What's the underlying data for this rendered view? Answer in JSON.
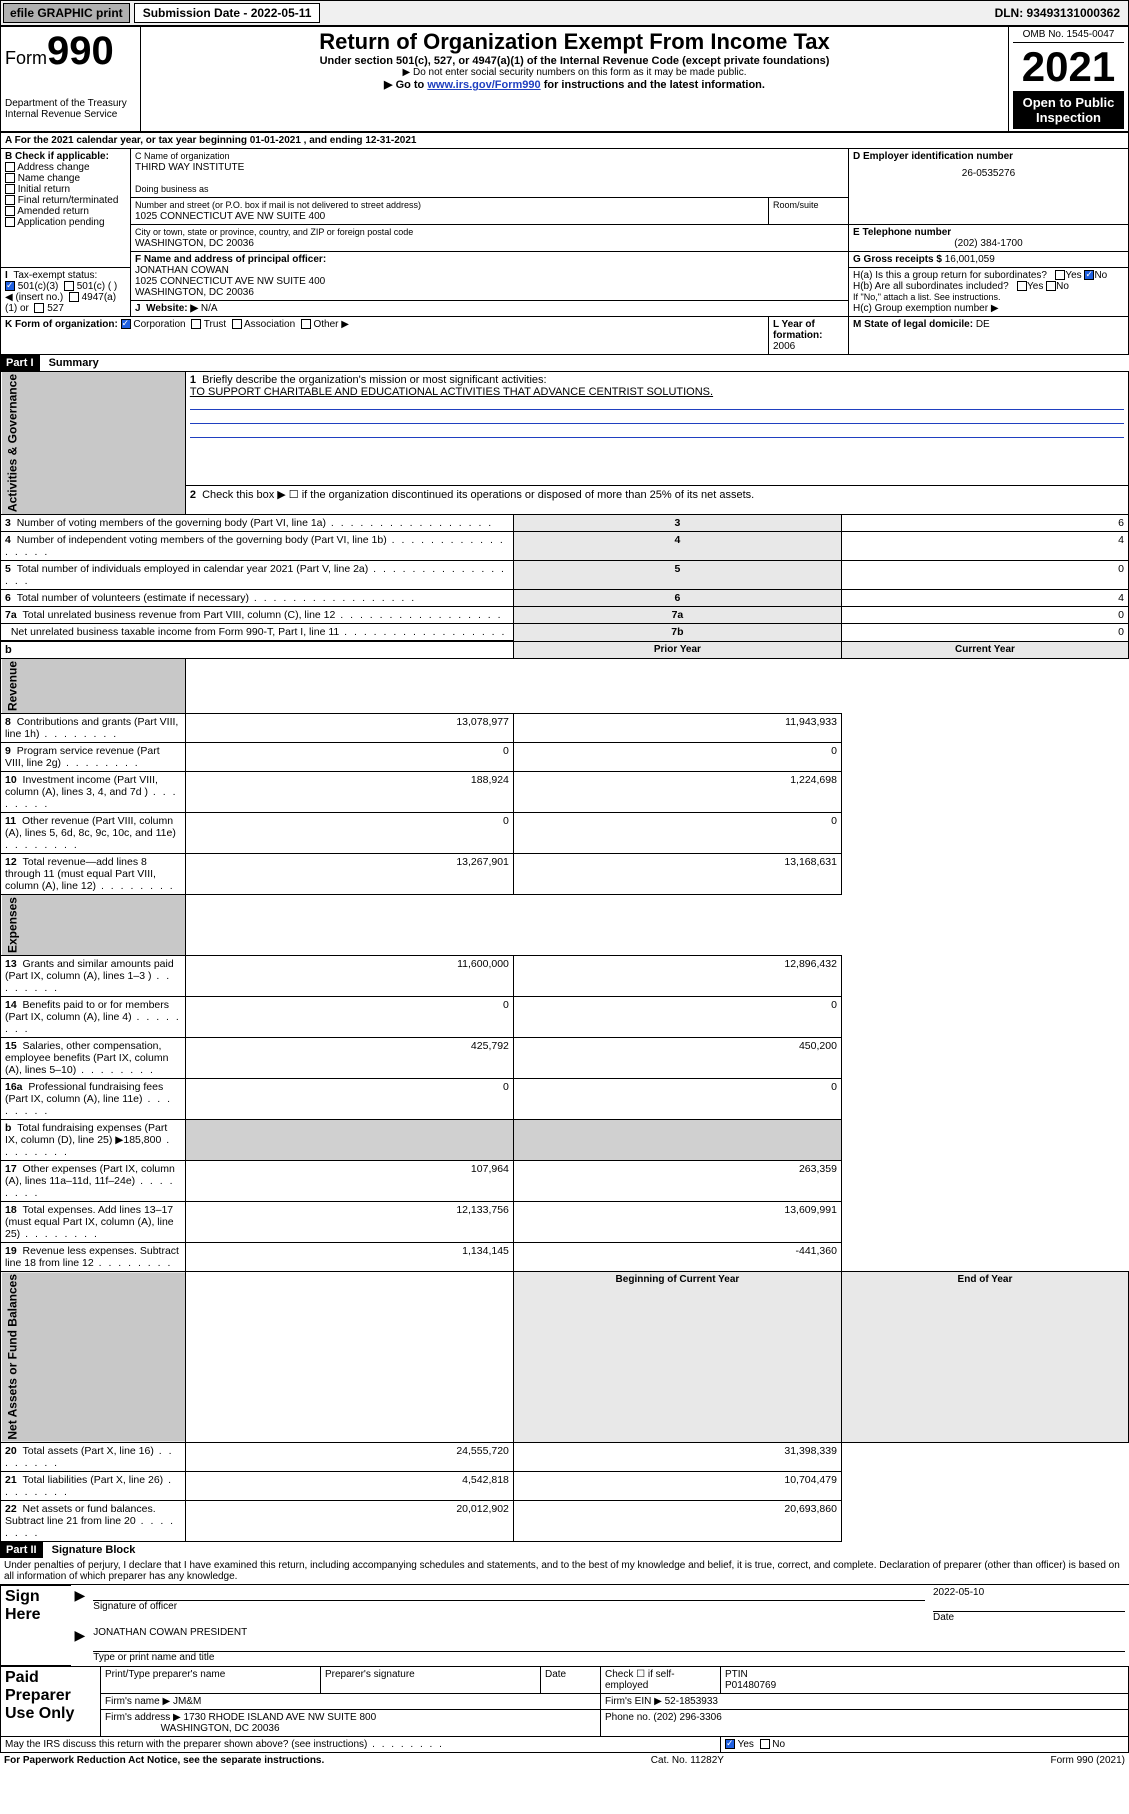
{
  "topbar": {
    "efile": "efile GRAPHIC print",
    "subdate_label": "Submission Date - 2022-05-11",
    "dln": "DLN: 93493131000362"
  },
  "header": {
    "form_prefix": "Form",
    "form_no": "990",
    "title": "Return of Organization Exempt From Income Tax",
    "subtitle": "Under section 501(c), 527, or 4947(a)(1) of the Internal Revenue Code (except private foundations)",
    "note1": "▶ Do not enter social security numbers on this form as it may be made public.",
    "note2_pre": "▶ Go to ",
    "note2_link": "www.irs.gov/Form990",
    "note2_post": " for instructions and the latest information.",
    "omb": "OMB No. 1545-0047",
    "year": "2021",
    "open_public": "Open to Public Inspection",
    "dept": "Department of the Treasury\nInternal Revenue Service"
  },
  "sectionA": {
    "a_line": "A For the 2021 calendar year, or tax year beginning 01-01-2021  , and ending 12-31-2021",
    "b_label": "B Check if applicable:",
    "b_opts": [
      "Address change",
      "Name change",
      "Initial return",
      "Final return/terminated",
      "Amended return",
      "Application pending"
    ],
    "c_label": "C Name of organization",
    "c_name": "THIRD WAY INSTITUTE",
    "dba": "Doing business as",
    "addr_label": "Number and street (or P.O. box if mail is not delivered to street address)",
    "addr": "1025 CONNECTICUT AVE NW SUITE 400",
    "room_label": "Room/suite",
    "city_label": "City or town, state or province, country, and ZIP or foreign postal code",
    "city": "WASHINGTON, DC  20036",
    "d_label": "D Employer identification number",
    "d_ein": "26-0535276",
    "e_label": "E Telephone number",
    "e_phone": "(202) 384-1700",
    "g_label": "G Gross receipts $",
    "g_val": "16,001,059",
    "f_label": "F  Name and address of principal officer:",
    "f_name": "JONATHAN COWAN",
    "f_addr1": "1025 CONNECTICUT AVE NW SUITE 400",
    "f_addr2": "WASHINGTON, DC  20036",
    "ha_label": "H(a)  Is this a group return for subordinates?",
    "hb_label": "H(b)  Are all subordinates included?",
    "hb_note": "If \"No,\" attach a list. See instructions.",
    "hc_label": "H(c)  Group exemption number ▶",
    "i_label": "Tax-exempt status:",
    "i_501c3": "501(c)(3)",
    "i_501c": "501(c) (    ) ◀ (insert no.)",
    "i_4947": "4947(a)(1) or",
    "i_527": "527",
    "j_label": "Website: ▶",
    "j_val": "N/A",
    "k_label": "K Form of organization:",
    "k_opts": [
      "Corporation",
      "Trust",
      "Association",
      "Other ▶"
    ],
    "l_label": "L Year of formation:",
    "l_val": "2006",
    "m_label": "M State of legal domicile:",
    "m_val": "DE",
    "yes": "Yes",
    "no": "No"
  },
  "part1": {
    "hdr": "Part I",
    "title": "Summary",
    "tab_ag": "Activities & Governance",
    "tab_rev": "Revenue",
    "tab_exp": "Expenses",
    "tab_na": "Net Assets or Fund Balances",
    "q1": "Briefly describe the organization's mission or most significant activities:",
    "q1_ans": "TO SUPPORT CHARITABLE AND EDUCATIONAL ACTIVITIES THAT ADVANCE CENTRIST SOLUTIONS.",
    "q2": "Check this box ▶ ☐  if the organization discontinued its operations or disposed of more than 25% of its net assets.",
    "rows_ag": [
      {
        "n": "3",
        "t": "Number of voting members of the governing body (Part VI, line 1a)",
        "ln": "3",
        "v": "6"
      },
      {
        "n": "4",
        "t": "Number of independent voting members of the governing body (Part VI, line 1b)",
        "ln": "4",
        "v": "4"
      },
      {
        "n": "5",
        "t": "Total number of individuals employed in calendar year 2021 (Part V, line 2a)",
        "ln": "5",
        "v": "0"
      },
      {
        "n": "6",
        "t": "Total number of volunteers (estimate if necessary)",
        "ln": "6",
        "v": "4"
      },
      {
        "n": "7a",
        "t": "Total unrelated business revenue from Part VIII, column (C), line 12",
        "ln": "7a",
        "v": "0"
      },
      {
        "n": "",
        "t": "Net unrelated business taxable income from Form 990-T, Part I, line 11",
        "ln": "7b",
        "v": "0"
      }
    ],
    "col_prior": "Prior Year",
    "col_current": "Current Year",
    "rows_rev": [
      {
        "n": "8",
        "t": "Contributions and grants (Part VIII, line 1h)",
        "p": "13,078,977",
        "c": "11,943,933"
      },
      {
        "n": "9",
        "t": "Program service revenue (Part VIII, line 2g)",
        "p": "0",
        "c": "0"
      },
      {
        "n": "10",
        "t": "Investment income (Part VIII, column (A), lines 3, 4, and 7d )",
        "p": "188,924",
        "c": "1,224,698"
      },
      {
        "n": "11",
        "t": "Other revenue (Part VIII, column (A), lines 5, 6d, 8c, 9c, 10c, and 11e)",
        "p": "0",
        "c": "0"
      },
      {
        "n": "12",
        "t": "Total revenue—add lines 8 through 11 (must equal Part VIII, column (A), line 12)",
        "p": "13,267,901",
        "c": "13,168,631"
      }
    ],
    "rows_exp": [
      {
        "n": "13",
        "t": "Grants and similar amounts paid (Part IX, column (A), lines 1–3 )",
        "p": "11,600,000",
        "c": "12,896,432"
      },
      {
        "n": "14",
        "t": "Benefits paid to or for members (Part IX, column (A), line 4)",
        "p": "0",
        "c": "0"
      },
      {
        "n": "15",
        "t": "Salaries, other compensation, employee benefits (Part IX, column (A), lines 5–10)",
        "p": "425,792",
        "c": "450,200"
      },
      {
        "n": "16a",
        "t": "Professional fundraising fees (Part IX, column (A), line 11e)",
        "p": "0",
        "c": "0"
      },
      {
        "n": "b",
        "t": "Total fundraising expenses (Part IX, column (D), line 25) ▶185,800",
        "p": "",
        "c": ""
      },
      {
        "n": "17",
        "t": "Other expenses (Part IX, column (A), lines 11a–11d, 11f–24e)",
        "p": "107,964",
        "c": "263,359"
      },
      {
        "n": "18",
        "t": "Total expenses. Add lines 13–17 (must equal Part IX, column (A), line 25)",
        "p": "12,133,756",
        "c": "13,609,991"
      },
      {
        "n": "19",
        "t": "Revenue less expenses. Subtract line 18 from line 12",
        "p": "1,134,145",
        "c": "-441,360"
      }
    ],
    "col_begin": "Beginning of Current Year",
    "col_end": "End of Year",
    "rows_na": [
      {
        "n": "20",
        "t": "Total assets (Part X, line 16)",
        "p": "24,555,720",
        "c": "31,398,339"
      },
      {
        "n": "21",
        "t": "Total liabilities (Part X, line 26)",
        "p": "4,542,818",
        "c": "10,704,479"
      },
      {
        "n": "22",
        "t": "Net assets or fund balances. Subtract line 21 from line 20",
        "p": "20,012,902",
        "c": "20,693,860"
      }
    ]
  },
  "part2": {
    "hdr": "Part II",
    "title": "Signature Block",
    "penalties": "Under penalties of perjury, I declare that I have examined this return, including accompanying schedules and statements, and to the best of my knowledge and belief, it is true, correct, and complete. Declaration of preparer (other than officer) is based on all information of which preparer has any knowledge.",
    "sign_here": "Sign Here",
    "sig_officer": "Signature of officer",
    "sig_date": "2022-05-10",
    "date_lbl": "Date",
    "officer_name": "JONATHAN COWAN  PRESIDENT",
    "type_name": "Type or print name and title",
    "paid_prep": "Paid Preparer Use Only",
    "prep_name_lbl": "Print/Type preparer's name",
    "prep_sig_lbl": "Preparer's signature",
    "prep_date_lbl": "Date",
    "check_self": "Check ☐ if self-employed",
    "ptin_lbl": "PTIN",
    "ptin": "P01480769",
    "firm_name_lbl": "Firm's name     ▶",
    "firm_name": "JM&M",
    "firm_ein_lbl": "Firm's EIN ▶",
    "firm_ein": "52-1853933",
    "firm_addr_lbl": "Firm's address ▶",
    "firm_addr1": "1730 RHODE ISLAND AVE NW SUITE 800",
    "firm_addr2": "WASHINGTON, DC  20036",
    "phone_lbl": "Phone no.",
    "phone": "(202) 296-3306",
    "may_irs": "May the IRS discuss this return with the preparer shown above? (see instructions)"
  },
  "footer": {
    "pra": "For Paperwork Reduction Act Notice, see the separate instructions.",
    "cat": "Cat. No. 11282Y",
    "form": "Form 990 (2021)"
  }
}
